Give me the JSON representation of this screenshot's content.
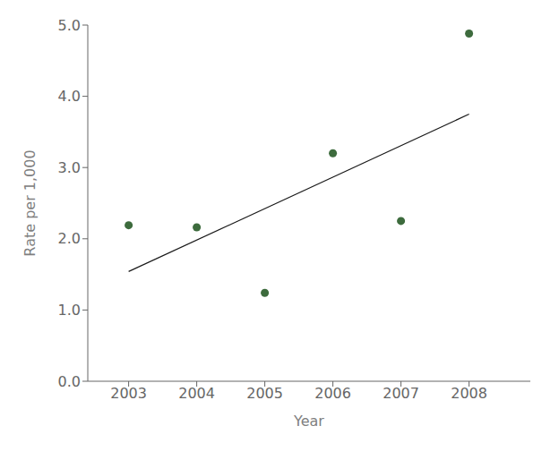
{
  "chart_data": {
    "type": "scatter",
    "xlabel": "Year",
    "ylabel": "Rate per 1,000",
    "series": [
      {
        "type": "scatter",
        "color": "#3d6b3d",
        "x": [
          2003,
          2004,
          2005,
          2006,
          2007,
          2008
        ],
        "values": [
          2.19,
          2.16,
          1.24,
          3.2,
          2.25,
          4.88
        ]
      },
      {
        "type": "line",
        "color": "#1a1a1a",
        "x": [
          2003,
          2008
        ],
        "values": [
          1.54,
          3.75
        ]
      }
    ],
    "xlim": [
      2002.4,
      2008.9
    ],
    "ylim": [
      0.0,
      5.0
    ],
    "xticks": [
      2003,
      2004,
      2005,
      2006,
      2007,
      2008
    ],
    "yticks": [
      {
        "value": 0.0,
        "label": "0.0"
      },
      {
        "value": 1.0,
        "label": "1.0"
      },
      {
        "value": 2.0,
        "label": "2.0"
      },
      {
        "value": 3.0,
        "label": "3.0"
      },
      {
        "value": 4.0,
        "label": "4.0"
      },
      {
        "value": 5.0,
        "label": "5.0"
      }
    ],
    "grid": false
  }
}
